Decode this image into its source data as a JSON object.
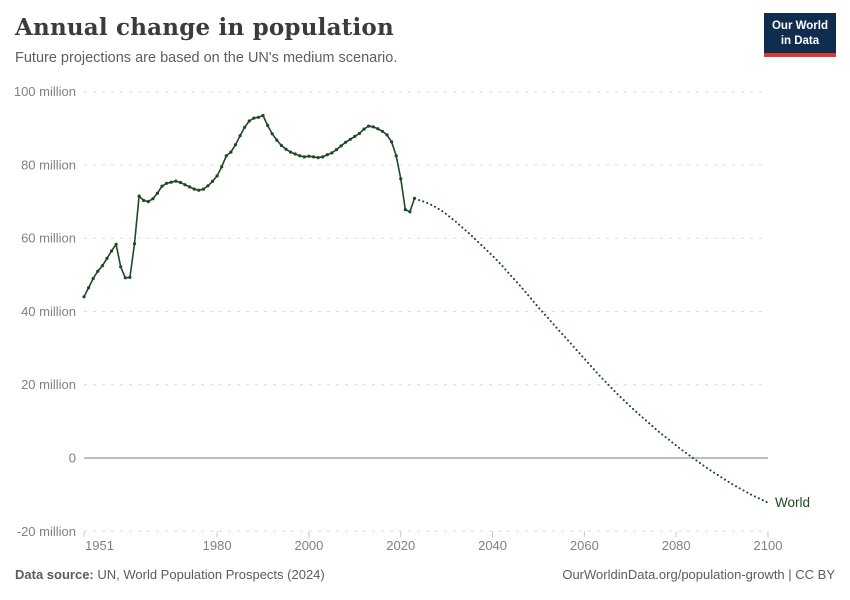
{
  "header": {
    "title": "Annual change in population",
    "subtitle": "Future projections are based on the UN's medium scenario.",
    "logo": {
      "line1": "Our World",
      "line2": "in Data"
    }
  },
  "footer": {
    "source_label": "Data source:",
    "source_text": " UN, World Population Prospects (2024)",
    "credit": "OurWorldinData.org/population-growth | CC BY"
  },
  "colors": {
    "line": "#1d4a21",
    "grid": "#dcdcdc",
    "zero_line": "#a8a8a8",
    "tick": "#c8c8c8",
    "axis_text": "#818181",
    "logo_bg": "#102d50",
    "logo_red": "#dc3b2f"
  },
  "chart_data": {
    "type": "line",
    "title": "Annual change in population",
    "subtitle": "Future projections are based on the UN's medium scenario.",
    "unit": "million people",
    "xlabel": "",
    "ylabel": "",
    "grid": "dashed-horizontal",
    "legend_position": "end-of-line",
    "xlim": [
      1951,
      2100
    ],
    "ylim": [
      -20,
      100
    ],
    "x_ticks": [
      1951,
      1980,
      2000,
      2020,
      2040,
      2060,
      2080,
      2100
    ],
    "y_ticks": [
      {
        "value": 100,
        "label": "100 million"
      },
      {
        "value": 80,
        "label": "80 million"
      },
      {
        "value": 60,
        "label": "60 million"
      },
      {
        "value": 40,
        "label": "40 million"
      },
      {
        "value": 20,
        "label": "20 million"
      },
      {
        "value": 0,
        "label": "0"
      },
      {
        "value": -20,
        "label": "-20 million"
      }
    ],
    "entity_label": "World",
    "series": [
      {
        "name": "World (observed)",
        "style": "solid-with-markers",
        "start_year": 1951,
        "end_year": 2023,
        "values": [
          44.0,
          46.5,
          49.0,
          51.0,
          52.5,
          54.5,
          56.5,
          58.3,
          52.2,
          49.2,
          49.3,
          58.5,
          71.5,
          70.3,
          70.0,
          70.8,
          72.3,
          74.2,
          75.0,
          75.3,
          75.6,
          75.2,
          74.6,
          74.0,
          73.4,
          73.1,
          73.4,
          74.3,
          75.5,
          77.0,
          79.5,
          82.5,
          83.5,
          85.5,
          88.0,
          90.3,
          92.0,
          92.8,
          93.0,
          93.5,
          90.8,
          88.5,
          86.8,
          85.3,
          84.3,
          83.5,
          83.0,
          82.5,
          82.2,
          82.4,
          82.2,
          82.0,
          82.2,
          82.8,
          83.3,
          84.2,
          85.2,
          86.2,
          87.0,
          87.8,
          88.6,
          89.8,
          90.6,
          90.4,
          89.9,
          89.2,
          88.2,
          86.3,
          82.5,
          76.2,
          67.8,
          67.2,
          70.9
        ]
      },
      {
        "name": "World (UN medium projection)",
        "style": "dotted",
        "start_year": 2024,
        "end_year": 2100,
        "values": [
          70.4,
          70.0,
          69.5,
          68.9,
          68.2,
          67.4,
          66.5,
          65.5,
          64.5,
          63.4,
          62.3,
          61.2,
          60.0,
          58.8,
          57.6,
          56.4,
          55.2,
          53.9,
          52.6,
          51.2,
          49.8,
          48.4,
          47.0,
          45.6,
          44.1,
          42.6,
          41.1,
          39.7,
          38.3,
          36.9,
          35.5,
          34.1,
          32.7,
          31.3,
          29.9,
          28.5,
          27.1,
          25.7,
          24.3,
          22.9,
          21.6,
          20.3,
          19.0,
          17.7,
          16.5,
          15.3,
          14.1,
          12.9,
          11.8,
          10.7,
          9.6,
          8.5,
          7.4,
          6.4,
          5.4,
          4.4,
          3.4,
          2.4,
          1.5,
          0.6,
          -0.3,
          -1.2,
          -2.1,
          -3.0,
          -3.8,
          -4.6,
          -5.4,
          -6.2,
          -7.0,
          -7.7,
          -8.4,
          -9.1,
          -9.8,
          -10.4,
          -11.0,
          -11.6,
          -12.2
        ]
      }
    ]
  }
}
